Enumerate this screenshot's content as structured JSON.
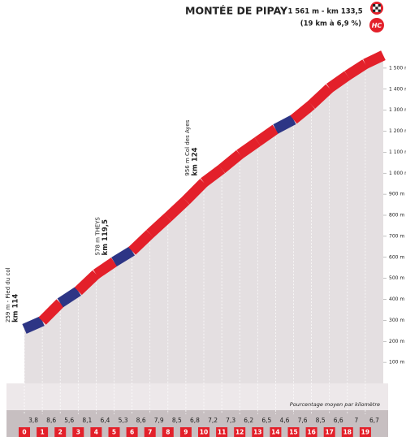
{
  "chart_data": {
    "type": "area",
    "title": "MONTÉE DE PIPAY",
    "summit": "- 1 561 m -  km 133,5",
    "summary": "(19 km à 6,9 %)",
    "category": "HC",
    "categories": [
      0,
      1,
      2,
      3,
      4,
      5,
      6,
      7,
      8,
      9,
      10,
      11,
      12,
      13,
      14,
      15,
      16,
      17,
      18,
      19,
      null
    ],
    "values": [
      259,
      297,
      383,
      439,
      520,
      578,
      630,
      712,
      790,
      870,
      956,
      1020,
      1090,
      1150,
      1210,
      1255,
      1325,
      1405,
      1465,
      1520,
      1561
    ],
    "color": "#e4dfe1",
    "ylim": [
      0,
      1600
    ],
    "yticks": [
      {
        "value": 100,
        "label": "100 m"
      },
      {
        "value": 200,
        "label": "200 m"
      },
      {
        "value": 300,
        "label": "300 m"
      },
      {
        "value": 400,
        "label": "400 m"
      },
      {
        "value": 500,
        "label": "500 m"
      },
      {
        "value": 600,
        "label": "600 m"
      },
      {
        "value": 700,
        "label": "700 m"
      },
      {
        "value": 800,
        "label": "800 m"
      },
      {
        "value": 900,
        "label": "900 m"
      },
      {
        "value": 1000,
        "label": "1 000 m"
      },
      {
        "value": 1100,
        "label": "1 100 m"
      },
      {
        "value": 1200,
        "label": "1 200 m"
      },
      {
        "value": 1300,
        "label": "1 300 m"
      },
      {
        "value": 1400,
        "label": "1 400 m"
      },
      {
        "value": 1500,
        "label": "1 500 m"
      }
    ],
    "gradients": {
      "values": [
        3.8,
        8.6,
        5.6,
        8.1,
        6.4,
        5.3,
        8.6,
        7.9,
        8.5,
        6.8,
        7.2,
        7.3,
        6.2,
        6.5,
        4.6,
        7.6,
        8.5,
        6.6,
        7,
        6.7
      ],
      "value_labels": [
        "3,8",
        "8,6",
        "5,6",
        "8,1",
        "6,4",
        "5,3",
        "8,6",
        "7,9",
        "8,5",
        "6,8",
        "7,2",
        "7,3",
        "6,2",
        "6,5",
        "4,6",
        "7,6",
        "8,5",
        "6,6",
        "7",
        "6,7"
      ],
      "colors": [
        "#2d3585",
        "#e3202a",
        "#2d3585",
        "#e3202a",
        "#e3202a",
        "#2d3585",
        "#e3202a",
        "#e3202a",
        "#e3202a",
        "#e3202a",
        "#e3202a",
        "#e3202a",
        "#e3202a",
        "#e3202a",
        "#2d3585",
        "#e3202a",
        "#e3202a",
        "#e3202a",
        "#e3202a",
        "#e3202a"
      ]
    },
    "gradient_caption": "Pourcentage moyen par kilomètre",
    "annotations": [
      {
        "text": "259 m - Pied du col",
        "km": "km 114"
      },
      {
        "text": "578 m THEYS",
        "km": "km 119,5"
      },
      {
        "text": "956 m Col des Ayes",
        "km": "km 124"
      }
    ]
  }
}
